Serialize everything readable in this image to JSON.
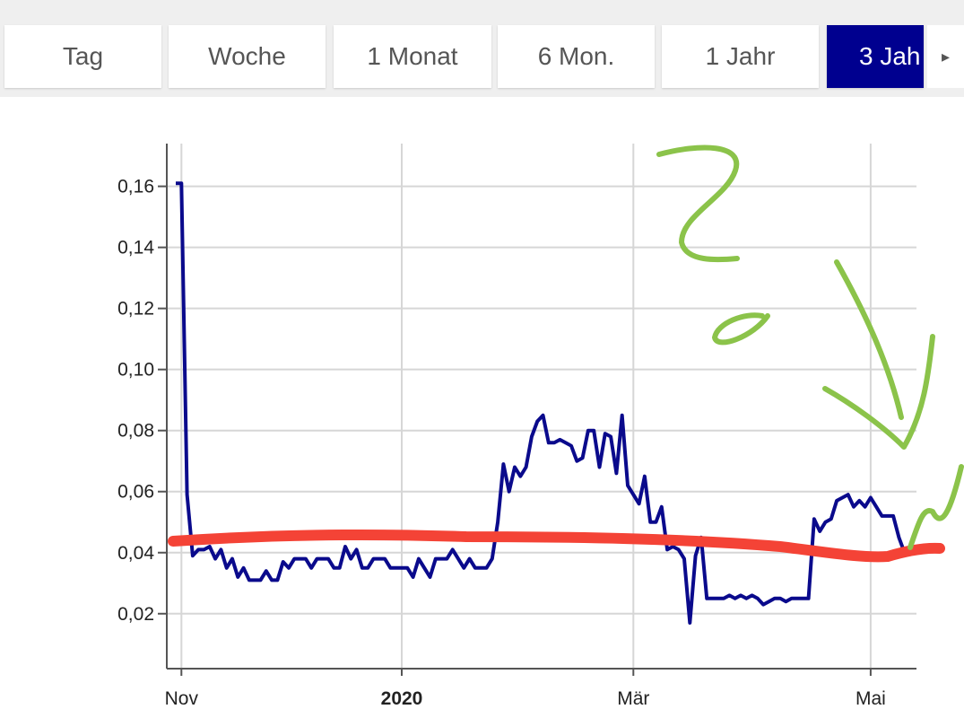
{
  "tabs": [
    "Tag",
    "Woche",
    "1 Monat",
    "6 Mon.",
    "1 Jahr",
    "3 Jah"
  ],
  "selected_tab": 5,
  "chart_data": {
    "type": "line",
    "categories": [
      null,
      "Nov",
      null,
      null,
      null,
      null,
      null,
      null,
      null,
      null,
      null,
      null,
      null,
      null,
      null,
      null,
      null,
      null,
      null,
      null,
      null,
      null,
      null,
      null,
      null,
      null,
      null,
      null,
      null,
      null,
      null,
      null,
      null,
      null,
      null,
      null,
      null,
      null,
      null,
      null,
      "2020",
      null,
      null,
      null,
      null,
      null,
      null,
      null,
      null,
      null,
      null,
      null,
      null,
      null,
      null,
      null,
      null,
      null,
      null,
      null,
      null,
      null,
      null,
      null,
      null,
      null,
      null,
      null,
      null,
      null,
      null,
      null,
      null,
      null,
      null,
      null,
      null,
      null,
      null,
      null,
      null,
      "Mär",
      null,
      null,
      null,
      null,
      null,
      null,
      null,
      null,
      null,
      null,
      null,
      null,
      null,
      null,
      null,
      null,
      null,
      null,
      null,
      null,
      null,
      null,
      null,
      null,
      null,
      null,
      null,
      null,
      null,
      null,
      null,
      null,
      null,
      null,
      null,
      null,
      null,
      null,
      null,
      null,
      null,
      "Mai",
      null,
      null,
      null,
      null,
      null,
      null
    ],
    "series": [
      {
        "color": "#0a0a8c",
        "values": [
          0.161,
          0.161,
          0.059,
          0.039,
          0.041,
          0.041,
          0.042,
          0.038,
          0.041,
          0.035,
          0.038,
          0.032,
          0.035,
          0.031,
          0.031,
          0.031,
          0.034,
          0.031,
          0.031,
          0.037,
          0.035,
          0.038,
          0.038,
          0.038,
          0.035,
          0.038,
          0.038,
          0.038,
          0.035,
          0.035,
          0.042,
          0.038,
          0.041,
          0.035,
          0.035,
          0.038,
          0.038,
          0.038,
          0.035,
          0.035,
          0.035,
          0.035,
          0.032,
          0.038,
          0.035,
          0.032,
          0.038,
          0.038,
          0.038,
          0.041,
          0.038,
          0.035,
          0.038,
          0.035,
          0.035,
          0.035,
          0.038,
          0.05,
          0.069,
          0.06,
          0.068,
          0.065,
          0.068,
          0.078,
          0.083,
          0.085,
          0.076,
          0.076,
          0.077,
          0.076,
          0.075,
          0.07,
          0.071,
          0.08,
          0.08,
          0.068,
          0.079,
          0.078,
          0.066,
          0.085,
          0.062,
          0.059,
          0.056,
          0.065,
          0.05,
          0.05,
          0.055,
          0.041,
          0.042,
          0.041,
          0.038,
          0.017,
          0.039,
          0.045,
          0.025,
          0.025,
          0.025,
          0.025,
          0.026,
          0.025,
          0.026,
          0.025,
          0.026,
          0.025,
          0.023,
          0.024,
          0.025,
          0.025,
          0.024,
          0.025,
          0.025,
          0.025,
          0.025,
          0.051,
          0.047,
          0.05,
          0.051,
          0.057,
          0.058,
          0.059,
          0.055,
          0.057,
          0.055,
          0.058,
          0.055,
          0.052,
          0.052,
          0.052,
          0.045,
          0.04
        ]
      }
    ],
    "ylim": [
      0.002,
      0.174
    ],
    "yticks": [
      {
        "value": 0.02,
        "label": "0,02"
      },
      {
        "value": 0.04,
        "label": "0,04"
      },
      {
        "value": 0.06,
        "label": "0,06"
      },
      {
        "value": 0.08,
        "label": "0,08"
      },
      {
        "value": 0.1,
        "label": "0,10"
      },
      {
        "value": 0.12,
        "label": "0,12"
      },
      {
        "value": 0.14,
        "label": "0,14"
      },
      {
        "value": 0.16,
        "label": "0,16"
      }
    ],
    "grid": true
  }
}
